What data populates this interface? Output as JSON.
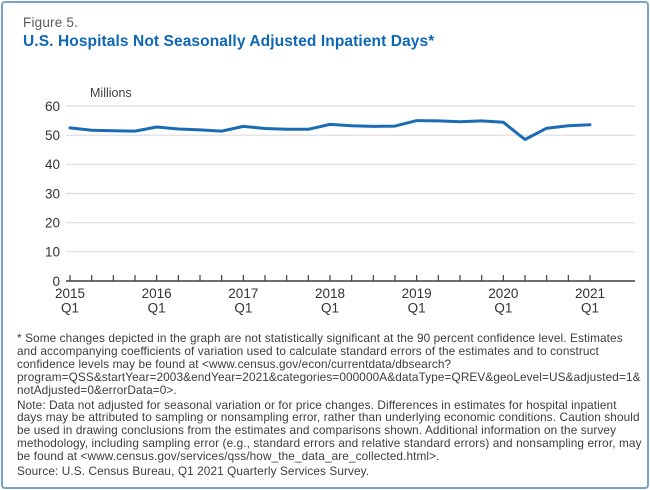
{
  "figure_label": "Figure 5.",
  "title": "U.S. Hospitals Not Seasonally Adjusted Inpatient Days*",
  "chart_data": {
    "type": "line",
    "title": "U.S. Hospitals Not Seasonally Adjusted Inpatient Days*",
    "unit_label": "Millions",
    "xlabel": "",
    "ylabel": "Millions",
    "ylim": [
      0,
      60
    ],
    "yticks": [
      0,
      10,
      20,
      30,
      40,
      50,
      60
    ],
    "grid": true,
    "line_color": "#1b6cb5",
    "x": [
      "2015 Q1",
      "2015 Q2",
      "2015 Q3",
      "2015 Q4",
      "2016 Q1",
      "2016 Q2",
      "2016 Q3",
      "2016 Q4",
      "2017 Q1",
      "2017 Q2",
      "2017 Q3",
      "2017 Q4",
      "2018 Q1",
      "2018 Q2",
      "2018 Q3",
      "2018 Q4",
      "2019 Q1",
      "2019 Q2",
      "2019 Q3",
      "2019 Q4",
      "2020 Q1",
      "2020 Q2",
      "2020 Q3",
      "2020 Q4",
      "2021 Q1"
    ],
    "values": [
      52.5,
      51.7,
      51.5,
      51.4,
      52.8,
      52.1,
      51.8,
      51.4,
      53.0,
      52.3,
      52.0,
      52.0,
      53.7,
      53.2,
      53.0,
      53.1,
      55.0,
      54.9,
      54.6,
      54.9,
      54.4,
      48.5,
      52.4,
      53.2,
      53.6
    ],
    "xtick_major": [
      {
        "index": 0,
        "line1": "2015",
        "line2": "Q1"
      },
      {
        "index": 4,
        "line1": "2016",
        "line2": "Q1"
      },
      {
        "index": 8,
        "line1": "2017",
        "line2": "Q1"
      },
      {
        "index": 12,
        "line1": "2018",
        "line2": "Q1"
      },
      {
        "index": 16,
        "line1": "2019",
        "line2": "Q1"
      },
      {
        "index": 20,
        "line1": "2020",
        "line2": "Q1"
      },
      {
        "index": 24,
        "line1": "2021",
        "line2": "Q1"
      }
    ]
  },
  "footnotes": {
    "asterisk_note": "* Some changes depicted in the graph are not statistically significant at the 90 percent confidence level. Estimates and accompanying coefficients of variation used to calculate standard errors of the estimates and to construct confidence levels may be found at <www.census.gov/econ/currentdata/dbsearch?program=QSS&startYear=2003&endYear=2021&categories=000000A&dataType=QREV&geoLevel=US&adjusted=1&notAdjusted=0&errorData=0>.",
    "note": "Note: Data not adjusted for seasonal variation or for price changes. Differences in estimates for hospital inpatient days may be attributed to sampling or nonsampling error, rather than underlying economic conditions. Caution should be used in drawing conclusions from the estimates and comparisons shown. Additional information on the survey methodology, including sampling error (e.g., standard errors and relative standard errors) and nonsampling error, may be found at <www.census.gov/services/qss/how_the_data_are_collected.html>.",
    "source": "Source: U.S. Census Bureau, Q1 2021 Quarterly Services Survey."
  },
  "colors": {
    "title_blue": "#0d67b5",
    "line_blue": "#1b6cb5",
    "border_blue": "#78a3cd",
    "gridline_gray": "#dcdcdc",
    "axis_gray": "#3f3f3f",
    "footnote_gray": "#3d3d3d"
  }
}
